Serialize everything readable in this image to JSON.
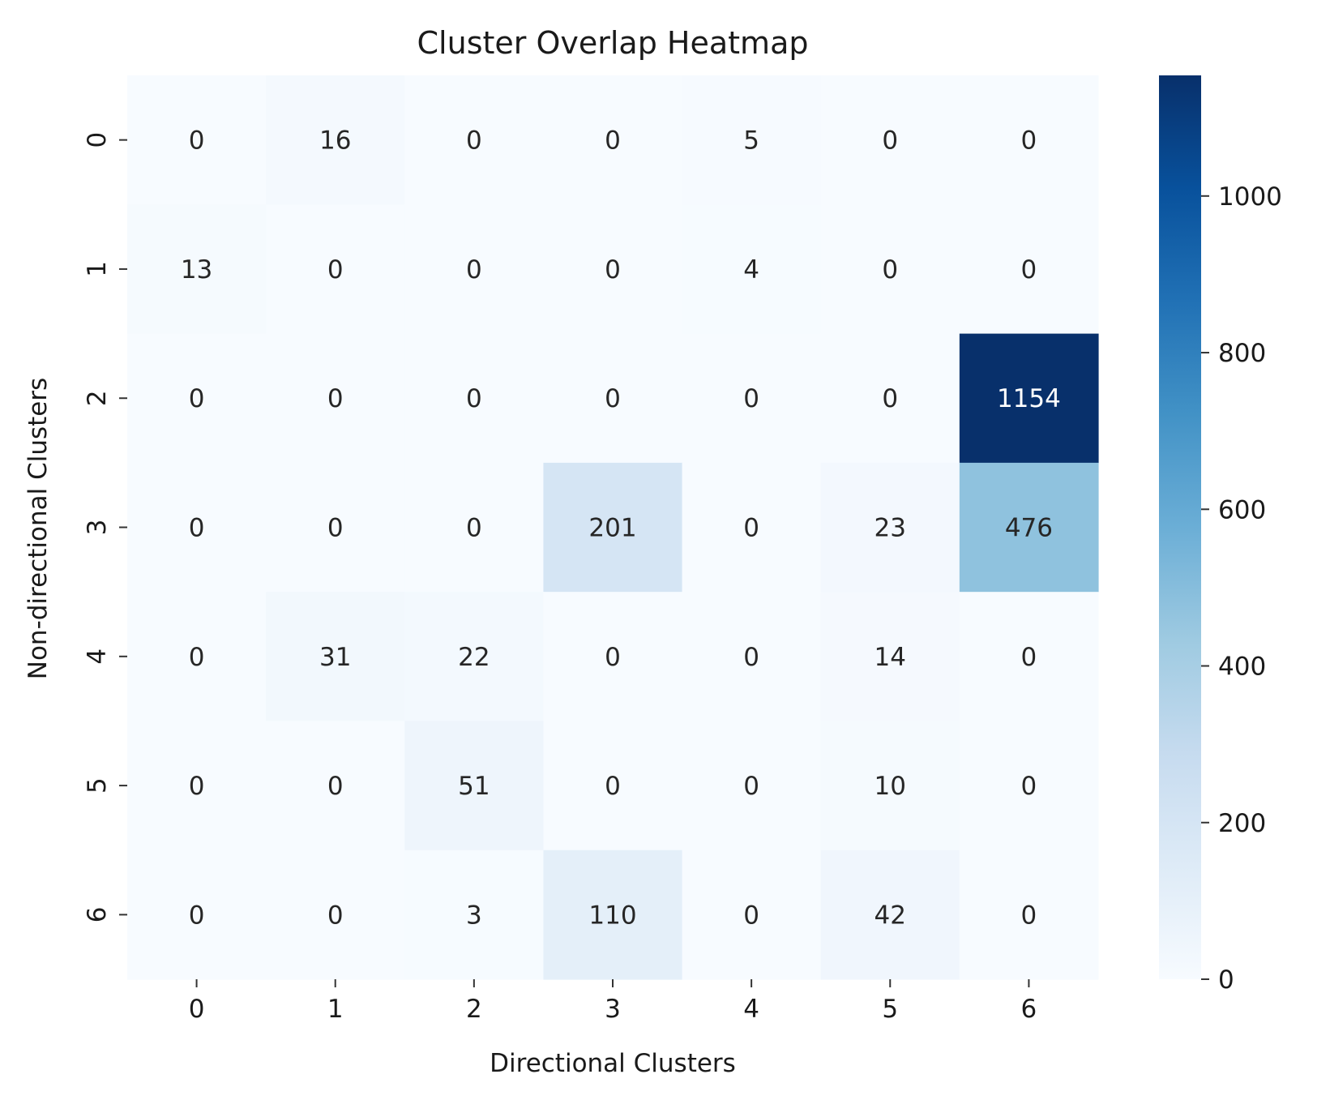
{
  "chart_data": {
    "type": "heatmap",
    "title": "Cluster Overlap Heatmap",
    "xlabel": "Directional Clusters",
    "ylabel": "Non-directional Clusters",
    "x_categories": [
      "0",
      "1",
      "2",
      "3",
      "4",
      "5",
      "6"
    ],
    "y_categories": [
      "0",
      "1",
      "2",
      "3",
      "4",
      "5",
      "6"
    ],
    "values": [
      [
        0,
        16,
        0,
        0,
        5,
        0,
        0
      ],
      [
        13,
        0,
        0,
        0,
        4,
        0,
        0
      ],
      [
        0,
        0,
        0,
        0,
        0,
        0,
        1154
      ],
      [
        0,
        0,
        0,
        201,
        0,
        23,
        476
      ],
      [
        0,
        31,
        22,
        0,
        0,
        14,
        0
      ],
      [
        0,
        0,
        51,
        0,
        0,
        10,
        0
      ],
      [
        0,
        0,
        3,
        110,
        0,
        42,
        0
      ]
    ],
    "colormap": "Blues",
    "color_range": [
      0,
      1154
    ],
    "colorbar_ticks": [
      0,
      200,
      400,
      600,
      800,
      1000
    ],
    "annotations": true,
    "grid": false,
    "colorbar": "right"
  }
}
